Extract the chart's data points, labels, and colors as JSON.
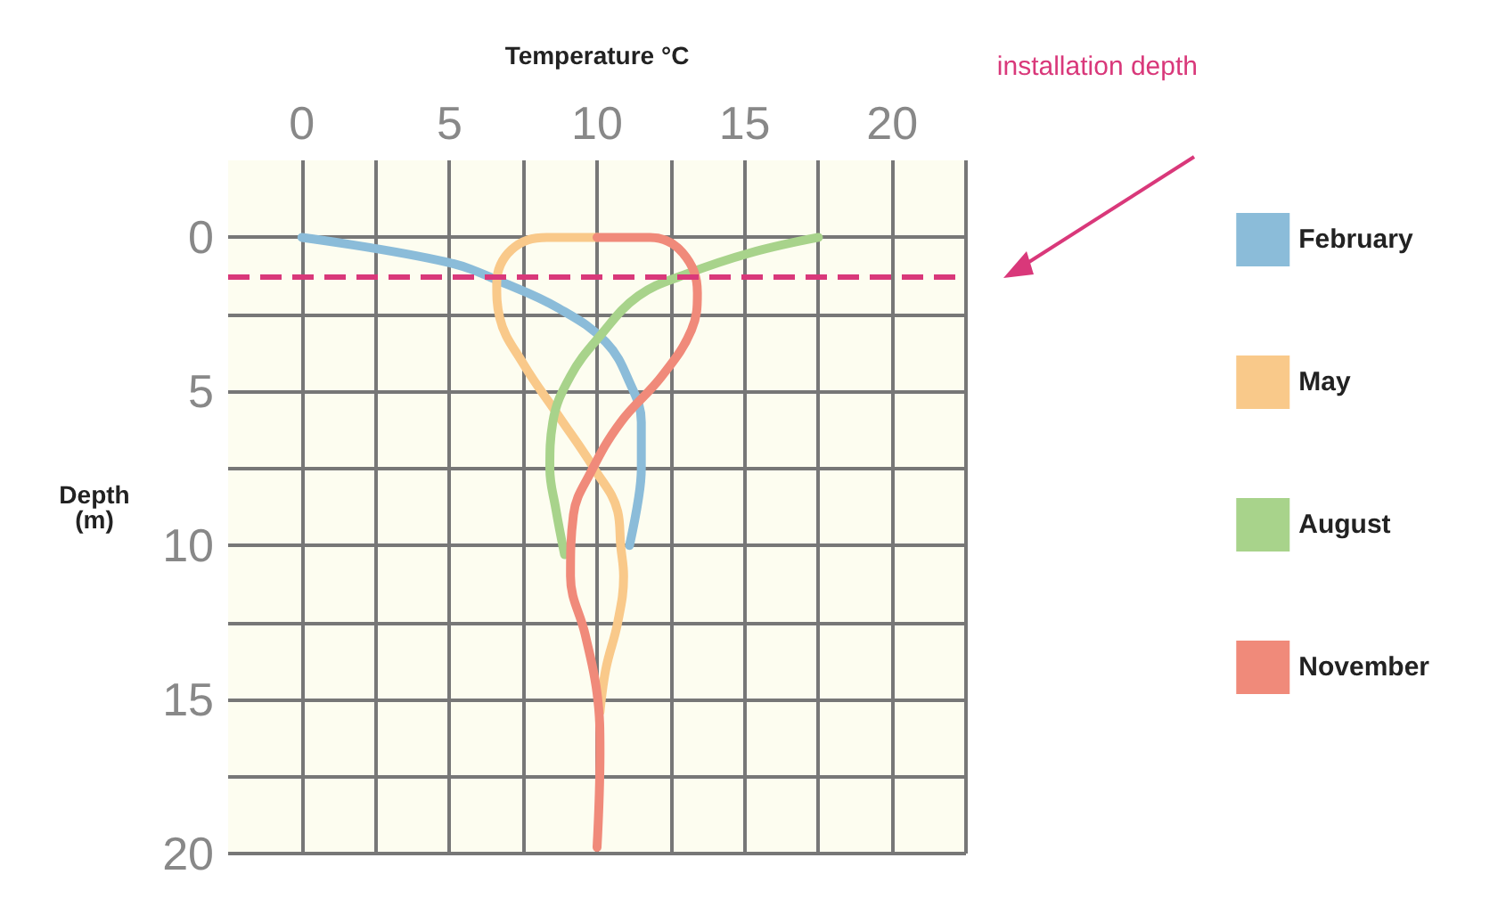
{
  "chart_data": {
    "type": "line",
    "xlabel": "Temperature °C",
    "ylabel": "Depth (m)",
    "xlim": [
      -2.5,
      22.5
    ],
    "ylim": [
      20,
      -2.5
    ],
    "xticks": [
      0,
      {
        "value": 2.5,
        "label": null
      },
      5,
      {
        "value": 7.5,
        "label": null
      },
      10,
      {
        "value": 12.5,
        "label": null
      },
      15,
      {
        "value": 17.5,
        "label": null
      },
      20,
      {
        "value": 22.5,
        "label": null
      }
    ],
    "yticks": [
      0,
      {
        "value": 2.5,
        "label": null
      },
      5,
      {
        "value": 7.5,
        "label": null
      },
      10,
      {
        "value": 12.5,
        "label": null
      },
      15,
      {
        "value": 17.5,
        "label": null
      },
      20
    ],
    "series": [
      {
        "name": "February",
        "color": "#8bbcd9",
        "x": [
          0,
          4.9,
          6.9,
          8.7,
          10.3,
          11.1,
          11.5,
          11.5,
          11.4,
          11.1
        ],
        "values": [
          0,
          0.8,
          1.5,
          2.3,
          3.4,
          4.7,
          6,
          7.5,
          8.5,
          10
        ]
      },
      {
        "name": "May",
        "color": "#f9c98a",
        "x": [
          10,
          8.3,
          7.1,
          6.6,
          6.7,
          7.5,
          8.7,
          9.9,
          10.7,
          10.8,
          10.9,
          10.7,
          10.3,
          10.1
        ],
        "values": [
          0,
          0,
          0.4,
          1.5,
          2.6,
          4.1,
          5.8,
          7.5,
          8.9,
          10,
          11,
          12.5,
          14,
          15.4
        ]
      },
      {
        "name": "August",
        "color": "#a8d38b",
        "x": [
          17.5,
          15.2,
          13,
          11.4,
          10.1,
          9.1,
          8.5,
          8.4,
          8.6,
          8.9
        ],
        "values": [
          0,
          0.5,
          1.2,
          1.9,
          3.2,
          4.5,
          6,
          7.5,
          8.8,
          10.3
        ]
      },
      {
        "name": "November",
        "color": "#f08a7a",
        "x": [
          10,
          11.8,
          12.9,
          13.4,
          13.2,
          12.2,
          10.8,
          9.8,
          9.2,
          9.1,
          9.6,
          10,
          10.1,
          10
        ],
        "values": [
          0,
          0,
          0.5,
          1.8,
          3,
          4.5,
          6,
          7.6,
          9,
          11,
          12.9,
          14.8,
          16.7,
          19.8
        ]
      }
    ],
    "ref_lines": [
      {
        "axis": "y",
        "value": 1.3,
        "label": "installation depth",
        "color": "#d9387a",
        "line_style": "dashed"
      }
    ],
    "grid": true,
    "legend": "right",
    "marker": "none",
    "line_style": "solid"
  }
}
